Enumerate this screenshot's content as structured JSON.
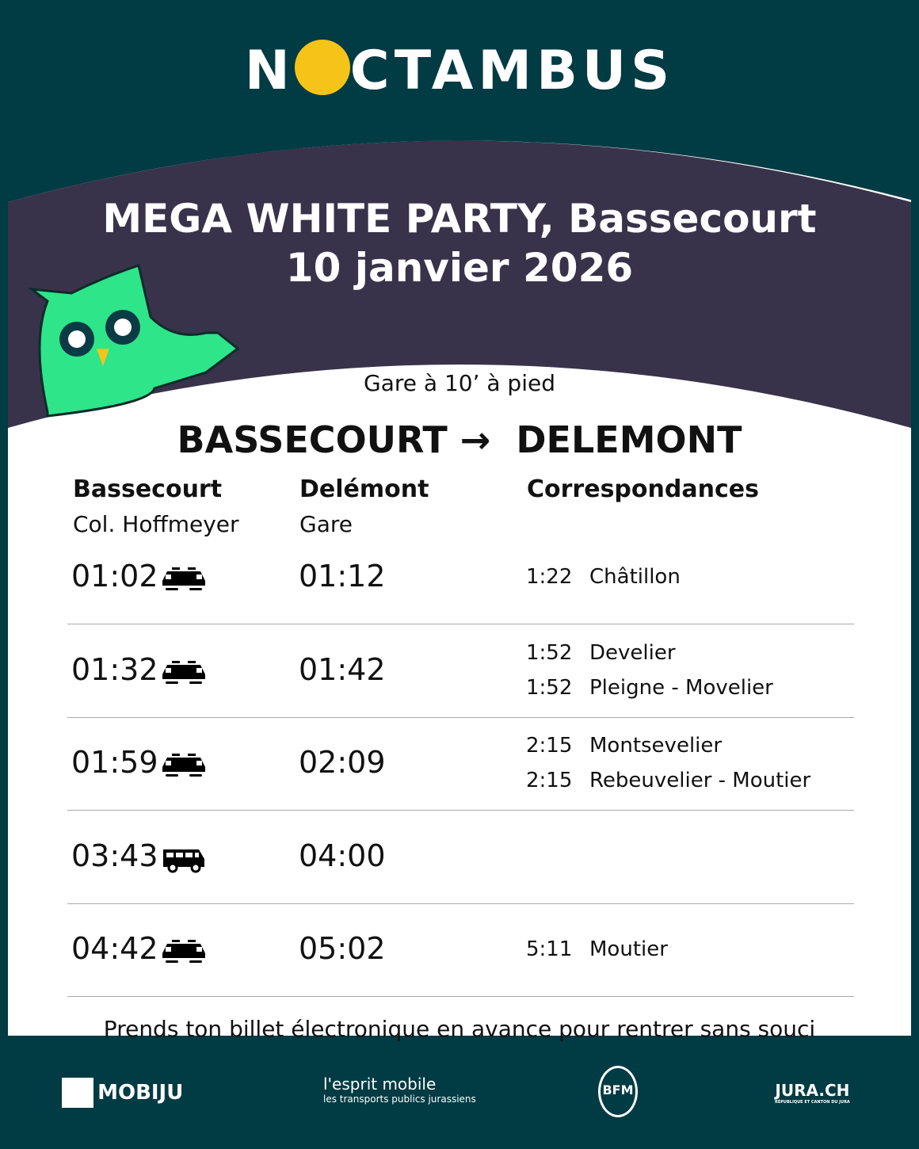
{
  "brand": {
    "logo_text_left": "N",
    "logo_text_right": "CTAMBUS"
  },
  "event": {
    "title": "MEGA WHITE PARTY, Bassecourt",
    "date": "10 janvier 2026"
  },
  "walk_note": "Gare à 10’ à pied",
  "route": {
    "from": "BASSECOURT",
    "arrow": "→",
    "to": "DELEMONT"
  },
  "columns": [
    {
      "title": "Bassecourt",
      "subtitle": "Col. Hoffmeyer"
    },
    {
      "title": "Delémont",
      "subtitle": "Gare"
    },
    {
      "title": "Correspondances",
      "subtitle": ""
    }
  ],
  "rows": [
    {
      "depart": "01:02",
      "mode": "train-icon",
      "arrive": "01:12",
      "connections": [
        {
          "time": "1:22",
          "dest": "Châtillon"
        }
      ]
    },
    {
      "depart": "01:32",
      "mode": "train-icon",
      "arrive": "01:42",
      "connections": [
        {
          "time": "1:52",
          "dest": "Develier"
        },
        {
          "time": "1:52",
          "dest": "Pleigne - Movelier"
        }
      ]
    },
    {
      "depart": "01:59",
      "mode": "train-icon",
      "arrive": "02:09",
      "connections": [
        {
          "time": "2:15",
          "dest": "Montsevelier"
        },
        {
          "time": "2:15",
          "dest": "Rebeuvelier - Moutier"
        }
      ]
    },
    {
      "depart": "03:43",
      "mode": "bus-icon",
      "arrive": "04:00",
      "connections": []
    },
    {
      "depart": "04:42",
      "mode": "train-icon",
      "arrive": "05:02",
      "connections": [
        {
          "time": "5:11",
          "dest": "Moutier"
        }
      ]
    }
  ],
  "footer_note": "Prends ton billet électronique en avance pour rentrer sans souci",
  "partners": {
    "mobiju": "MOBIJU",
    "esprit": "l'esprit mobile",
    "esprit_sub": "les transports publics jurassiens",
    "bfm": "BFM",
    "jura": "JURA.CH",
    "jura_sub": "RÉPUBLIQUE ET CANTON DU JURA"
  },
  "colors": {
    "background": "#013b44",
    "band": "#38334a",
    "owl_green": "#2ee58a",
    "logo_yellow": "#f6c419"
  }
}
